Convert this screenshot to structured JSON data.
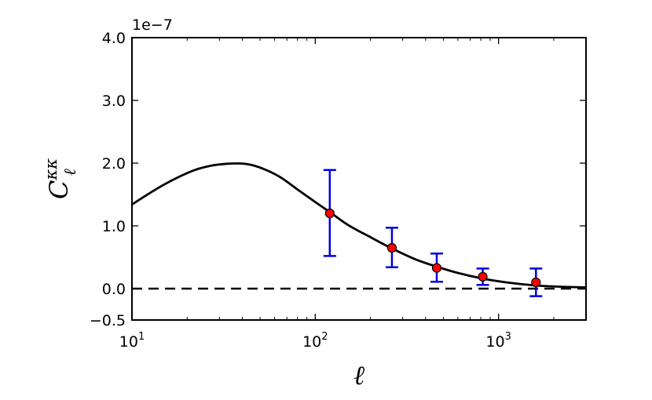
{
  "chart_data": {
    "type": "scatter",
    "title": "",
    "xlabel": "ℓ",
    "ylabel": {
      "main": "C",
      "sub": "ℓ",
      "sup": "κκ"
    },
    "x_scale": "log",
    "xlim": [
      10,
      3000
    ],
    "ylim": [
      -0.5,
      4.0
    ],
    "y_multiplier": "1e−7",
    "grid": false,
    "legend": "none",
    "x_ticks": [
      {
        "value": 10,
        "base": "10",
        "exp": "1"
      },
      {
        "value": 100,
        "base": "10",
        "exp": "2"
      },
      {
        "value": 1000,
        "base": "10",
        "exp": "3"
      }
    ],
    "y_ticks": [
      {
        "value": -0.5,
        "label": "−0.5"
      },
      {
        "value": 0.0,
        "label": "0.0"
      },
      {
        "value": 1.0,
        "label": "1.0"
      },
      {
        "value": 2.0,
        "label": "2.0"
      },
      {
        "value": 3.0,
        "label": "3.0"
      },
      {
        "value": 4.0,
        "label": "4.0"
      }
    ],
    "reference_line": {
      "y": 0.0,
      "style": "dashed",
      "color": "#000000"
    },
    "model_curve": {
      "color": "#000000",
      "x": [
        10,
        12,
        15,
        18,
        22,
        27,
        33,
        38,
        45,
        55,
        65,
        80,
        100,
        120,
        150,
        200,
        262,
        350,
        460,
        600,
        820,
        1100,
        1600,
        2200,
        3000
      ],
      "y": [
        1.34,
        1.49,
        1.66,
        1.78,
        1.89,
        1.96,
        1.99,
        1.995,
        1.97,
        1.88,
        1.77,
        1.58,
        1.38,
        1.22,
        1.02,
        0.82,
        0.64,
        0.47,
        0.35,
        0.25,
        0.16,
        0.1,
        0.05,
        0.03,
        0.02
      ]
    },
    "series": [
      {
        "marker_color": "#ff0000",
        "errorbar_color": "#0000dd",
        "points": [
          {
            "x": 120,
            "y": 1.2,
            "ylow": 0.52,
            "yhigh": 1.89
          },
          {
            "x": 262,
            "y": 0.65,
            "ylow": 0.34,
            "yhigh": 0.97
          },
          {
            "x": 460,
            "y": 0.33,
            "ylow": 0.11,
            "yhigh": 0.56
          },
          {
            "x": 820,
            "y": 0.19,
            "ylow": 0.06,
            "yhigh": 0.32
          },
          {
            "x": 1600,
            "y": 0.1,
            "ylow": -0.12,
            "yhigh": 0.32
          }
        ]
      }
    ]
  }
}
